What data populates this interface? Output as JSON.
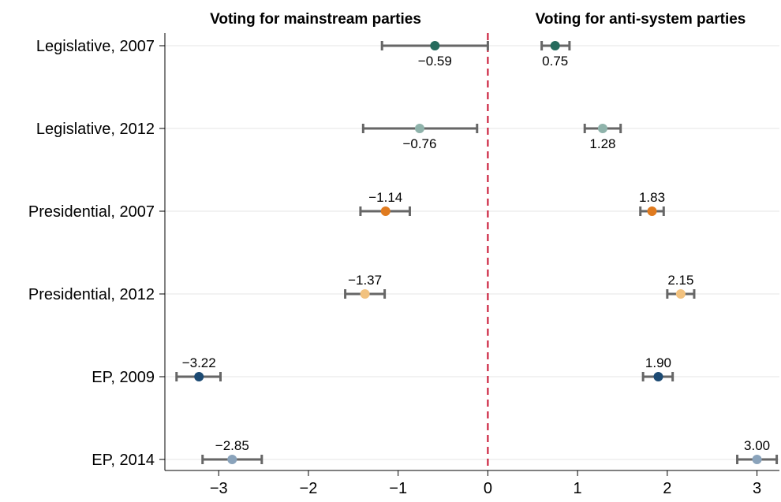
{
  "chart_data": {
    "type": "scatter",
    "subtype": "coefficient-plot-with-error-bars",
    "panel_titles": [
      "Voting for mainstream parties",
      "Voting for anti-system parties"
    ],
    "categories": [
      "Legislative, 2007",
      "Legislative, 2012",
      "Presidential, 2007",
      "Presidential, 2012",
      "EP, 2009",
      "EP, 2014"
    ],
    "x_ticks": [
      -3,
      -2,
      -1,
      0,
      1,
      2,
      3
    ],
    "x_tick_labels": [
      "−3",
      "−2",
      "−1",
      "0",
      "1",
      "2",
      "3"
    ],
    "xlim": [
      -3.6,
      3.25
    ],
    "reference_line": {
      "x": 0,
      "style": "dashed",
      "color": "#c8102e"
    },
    "grid": "horizontal",
    "series": [
      {
        "points": [
          {
            "category": "Legislative, 2007",
            "value": -0.59,
            "label": "−0.59",
            "ci": [
              -1.18,
              0.0
            ],
            "color": "#256b5d",
            "label_position": "below"
          },
          {
            "category": "Legislative, 2012",
            "value": -0.76,
            "label": "−0.76",
            "ci": [
              -1.39,
              -0.12
            ],
            "color": "#8fb3ab",
            "label_position": "below"
          },
          {
            "category": "Presidential, 2007",
            "value": -1.14,
            "label": "−1.14",
            "ci": [
              -1.42,
              -0.87
            ],
            "color": "#e07b1f",
            "label_position": "above"
          },
          {
            "category": "Presidential, 2012",
            "value": -1.37,
            "label": "−1.37",
            "ci": [
              -1.59,
              -1.15
            ],
            "color": "#f2c27f",
            "label_position": "above"
          },
          {
            "category": "EP, 2009",
            "value": -3.22,
            "label": "−3.22",
            "ci": [
              -3.47,
              -2.98
            ],
            "color": "#1c4a73",
            "label_position": "above"
          },
          {
            "category": "EP, 2014",
            "value": -2.85,
            "label": "−2.85",
            "ci": [
              -3.18,
              -2.52
            ],
            "color": "#8aa3bb",
            "label_position": "above"
          }
        ]
      },
      {
        "points": [
          {
            "category": "Legislative, 2007",
            "value": 0.75,
            "label": "0.75",
            "ci": [
              0.6,
              0.91
            ],
            "color": "#256b5d",
            "label_position": "below"
          },
          {
            "category": "Legislative, 2012",
            "value": 1.28,
            "label": "1.28",
            "ci": [
              1.08,
              1.48
            ],
            "color": "#8fb3ab",
            "label_position": "below"
          },
          {
            "category": "Presidential, 2007",
            "value": 1.83,
            "label": "1.83",
            "ci": [
              1.7,
              1.96
            ],
            "color": "#e07b1f",
            "label_position": "above"
          },
          {
            "category": "Presidential, 2012",
            "value": 2.15,
            "label": "2.15",
            "ci": [
              2.0,
              2.3
            ],
            "color": "#f2c27f",
            "label_position": "above"
          },
          {
            "category": "EP, 2009",
            "value": 1.9,
            "label": "1.90",
            "ci": [
              1.73,
              2.06
            ],
            "color": "#1c4a73",
            "label_position": "above"
          },
          {
            "category": "EP, 2014",
            "value": 3.0,
            "label": "3.00",
            "ci": [
              2.78,
              3.22
            ],
            "color": "#8aa3bb",
            "label_position": "above"
          }
        ]
      }
    ],
    "errorbar_color": "#666666",
    "title": "",
    "xlabel": "",
    "ylabel": ""
  }
}
